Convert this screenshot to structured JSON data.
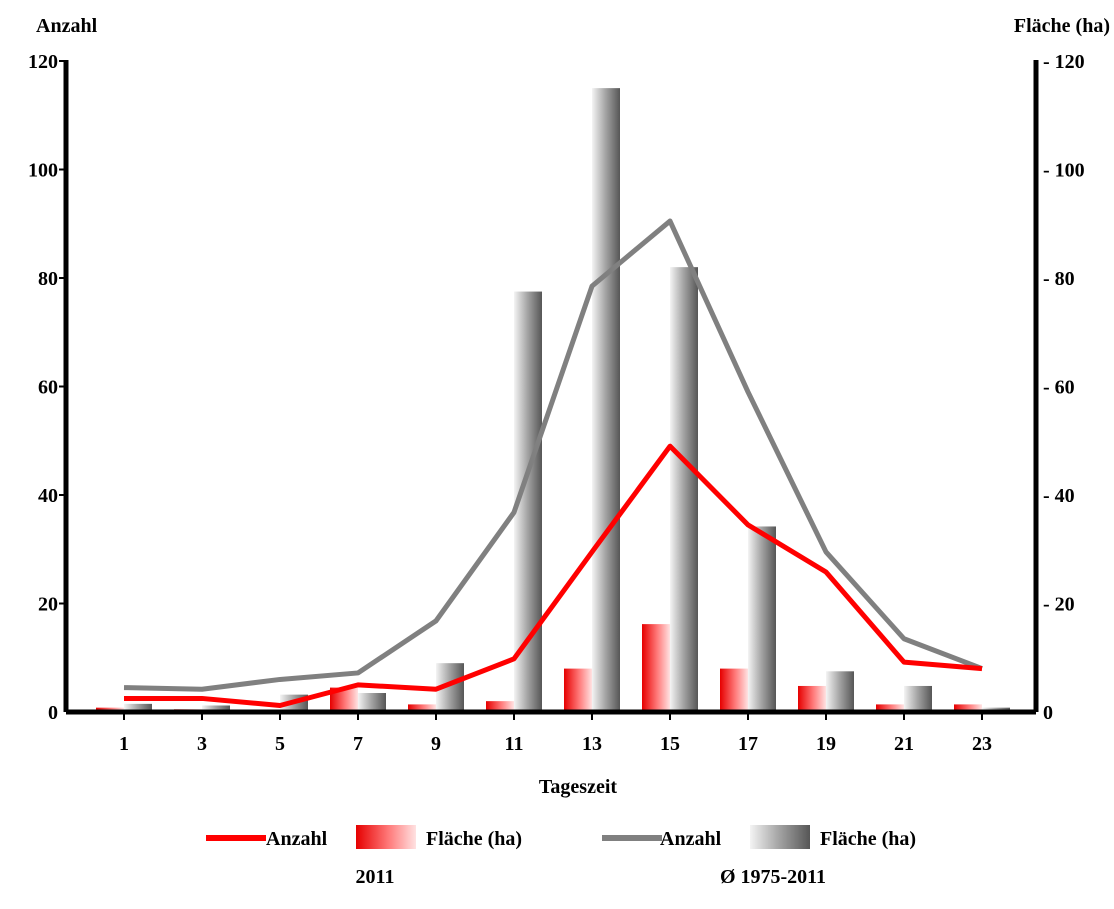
{
  "chart_data": {
    "type": "bar",
    "y_left_title": "Anzahl",
    "y_right_title": "Fläche (ha)",
    "xlabel": "Tageszeit",
    "x_ticks": [
      "1",
      "3",
      "5",
      "7",
      "9",
      "11",
      "13",
      "15",
      "17",
      "19",
      "21",
      "23"
    ],
    "y_ticks": [
      "0",
      "20",
      "40",
      "60",
      "80",
      "100",
      "120"
    ],
    "y_right_ticks": [
      "0",
      "- 20",
      "- 40",
      "- 60",
      "- 80",
      "- 100",
      "- 120"
    ],
    "ylim": [
      0,
      120
    ],
    "x": [
      1,
      3,
      5,
      7,
      9,
      11,
      13,
      15,
      17,
      19,
      21,
      23
    ],
    "series": [
      {
        "name": "Anzahl",
        "group": "2011",
        "kind": "line",
        "color": "#ff0000",
        "values": [
          2.5,
          2.5,
          1.2,
          5,
          4.2,
          9.8,
          29.5,
          49,
          34.5,
          25.8,
          9.2,
          8
        ]
      },
      {
        "name": "Fläche (ha)",
        "group": "2011",
        "kind": "bar",
        "color": "#ff0000",
        "values": [
          0.8,
          0.5,
          0.3,
          4.5,
          1.4,
          2,
          8,
          16.2,
          8,
          4.8,
          1.4,
          1.4
        ]
      },
      {
        "name": "Anzahl",
        "group": "Ø 1975-2011",
        "kind": "line",
        "color": "#808080",
        "values": [
          4.5,
          4.2,
          6,
          7.2,
          16.8,
          36.8,
          78.5,
          90.5,
          59,
          29.5,
          13.5,
          8
        ]
      },
      {
        "name": "Fläche (ha)",
        "group": "Ø 1975-2011",
        "kind": "bar",
        "color": "#808080",
        "values": [
          1.5,
          1.2,
          3.2,
          3.5,
          9,
          77.5,
          115,
          82,
          34.2,
          7.5,
          4.8,
          0.8
        ]
      }
    ],
    "legend": {
      "group_2011": "2011",
      "group_avg": "Ø 1975-2011",
      "line_label": "Anzahl",
      "bar_label": "Fläche (ha)",
      "position": "bottom"
    },
    "grid": false
  }
}
